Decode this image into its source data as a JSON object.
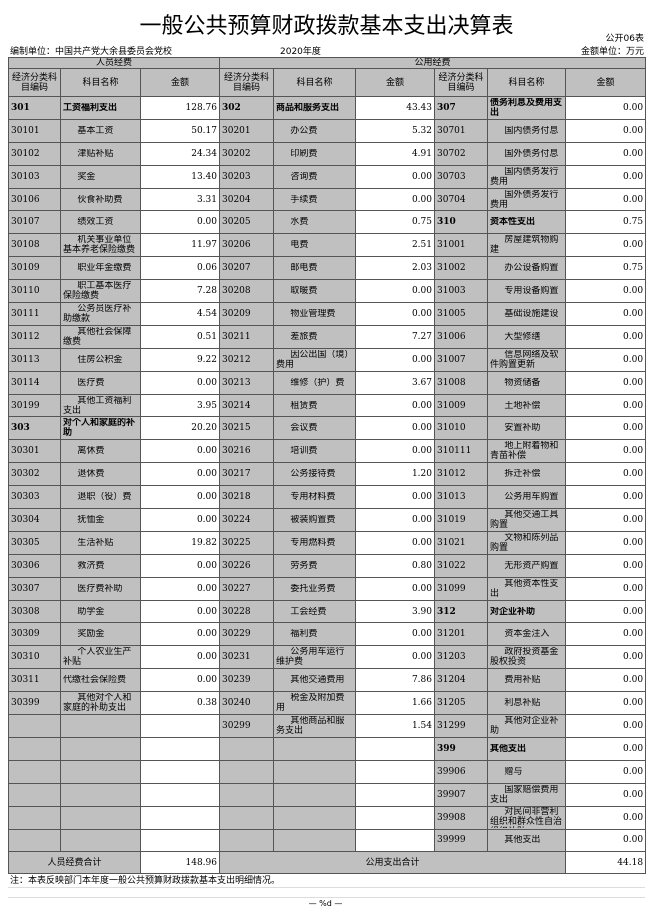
{
  "title": "一般公共预算财政拨款基本支出决算表",
  "table_no": "公开06表",
  "unit": "编制单位：中国共产党大余县委员会党校",
  "year": "2020年度",
  "money_unit": "金额单位：万元",
  "groups": {
    "personnel": "人员经费",
    "public": "公用经费"
  },
  "headers": {
    "code": "经济分类科目编码",
    "name": "科目名称",
    "amount": "金额"
  },
  "personnel": [
    [
      "301",
      "工资福利支出",
      "128.76",
      1
    ],
    [
      "30101",
      "基本工资",
      "50.17",
      0
    ],
    [
      "30102",
      "津贴补贴",
      "24.34",
      0
    ],
    [
      "30103",
      "奖金",
      "13.40",
      0
    ],
    [
      "30106",
      "伙食补助费",
      "3.31",
      0
    ],
    [
      "30107",
      "绩效工资",
      "0.00",
      0
    ],
    [
      "30108",
      "机关事业单位基本养老保险缴费",
      "11.97",
      0
    ],
    [
      "30109",
      "职业年金缴费",
      "0.06",
      0
    ],
    [
      "30110",
      "职工基本医疗保险缴费",
      "7.28",
      0
    ],
    [
      "30111",
      "公务员医疗补助缴款",
      "4.54",
      0
    ],
    [
      "30112",
      "其他社会保障缴费",
      "0.51",
      0
    ],
    [
      "30113",
      "住房公积金",
      "9.22",
      0
    ],
    [
      "30114",
      "医疗费",
      "0.00",
      0
    ],
    [
      "30199",
      "其他工资福利支出",
      "3.95",
      0
    ],
    [
      "303",
      "对个人和家庭的补助",
      "20.20",
      1
    ],
    [
      "30301",
      "离休费",
      "0.00",
      0
    ],
    [
      "30302",
      "退休费",
      "0.00",
      0
    ],
    [
      "30303",
      "退职（役）费",
      "0.00",
      0
    ],
    [
      "30304",
      "抚恤金",
      "0.00",
      0
    ],
    [
      "30305",
      "生活补贴",
      "19.82",
      0
    ],
    [
      "30306",
      "救济费",
      "0.00",
      0
    ],
    [
      "30307",
      "医疗费补助",
      "0.00",
      0
    ],
    [
      "30308",
      "助学金",
      "0.00",
      0
    ],
    [
      "30309",
      "奖励金",
      "0.00",
      0
    ],
    [
      "30310",
      "个人农业生产补贴",
      "0.00",
      0
    ],
    [
      "30311",
      "代缴社会保险费",
      "0.00",
      2
    ],
    [
      "30399",
      "其他对个人和家庭的补助支出",
      "0.38",
      0
    ]
  ],
  "public_a": [
    [
      "302",
      "商品和服务支出",
      "43.43",
      1
    ],
    [
      "30201",
      "办公费",
      "5.32",
      0
    ],
    [
      "30202",
      "印刷费",
      "4.91",
      0
    ],
    [
      "30203",
      "咨询费",
      "0.00",
      0
    ],
    [
      "30204",
      "手续费",
      "0.00",
      0
    ],
    [
      "30205",
      "水费",
      "0.75",
      0
    ],
    [
      "30206",
      "电费",
      "2.51",
      0
    ],
    [
      "30207",
      "邮电费",
      "2.03",
      0
    ],
    [
      "30208",
      "取暖费",
      "0.00",
      0
    ],
    [
      "30209",
      "物业管理费",
      "0.00",
      0
    ],
    [
      "30211",
      "差旅费",
      "7.27",
      0
    ],
    [
      "30212",
      "因公出国（境）费用",
      "0.00",
      0
    ],
    [
      "30213",
      "维修（护）费",
      "3.67",
      0
    ],
    [
      "30214",
      "租赁费",
      "0.00",
      0
    ],
    [
      "30215",
      "会议费",
      "0.00",
      0
    ],
    [
      "30216",
      "培训费",
      "0.00",
      0
    ],
    [
      "30217",
      "公务接待费",
      "1.20",
      0
    ],
    [
      "30218",
      "专用材料费",
      "0.00",
      0
    ],
    [
      "30224",
      "被装购置费",
      "0.00",
      0
    ],
    [
      "30225",
      "专用燃料费",
      "0.00",
      0
    ],
    [
      "30226",
      "劳务费",
      "0.80",
      0
    ],
    [
      "30227",
      "委托业务费",
      "0.00",
      0
    ],
    [
      "30228",
      "工会经费",
      "3.90",
      0
    ],
    [
      "30229",
      "福利费",
      "0.00",
      0
    ],
    [
      "30231",
      "公务用车运行维护费",
      "0.00",
      0
    ],
    [
      "30239",
      "其他交通费用",
      "7.86",
      0
    ],
    [
      "30240",
      "税金及附加费用",
      "1.66",
      0
    ],
    [
      "30299",
      "其他商品和服务支出",
      "1.54",
      0
    ]
  ],
  "public_b": [
    [
      "307",
      "债务利息及费用支出",
      "0.00",
      1
    ],
    [
      "30701",
      "国内债务付息",
      "0.00",
      0
    ],
    [
      "30702",
      "国外债务付息",
      "0.00",
      0
    ],
    [
      "30703",
      "国内债务发行费用",
      "0.00",
      0
    ],
    [
      "30704",
      "国外债务发行费用",
      "0.00",
      0
    ],
    [
      "310",
      "资本性支出",
      "0.75",
      1
    ],
    [
      "31001",
      "房屋建筑物购建",
      "0.00",
      0
    ],
    [
      "31002",
      "办公设备购置",
      "0.75",
      0
    ],
    [
      "31003",
      "专用设备购置",
      "0.00",
      0
    ],
    [
      "31005",
      "基础设施建设",
      "0.00",
      0
    ],
    [
      "31006",
      "大型修缮",
      "0.00",
      0
    ],
    [
      "31007",
      "信息网络及软件购置更新",
      "0.00",
      0
    ],
    [
      "31008",
      "物资储备",
      "0.00",
      0
    ],
    [
      "31009",
      "土地补偿",
      "0.00",
      0
    ],
    [
      "31010",
      "安置补助",
      "0.00",
      0
    ],
    [
      "310111",
      "地上附着物和青苗补偿",
      "0.00",
      0
    ],
    [
      "31012",
      "拆迁补偿",
      "0.00",
      0
    ],
    [
      "31013",
      "公务用车购置",
      "0.00",
      0
    ],
    [
      "31019",
      "其他交通工具购置",
      "0.00",
      0
    ],
    [
      "31021",
      "文物和陈列品购置",
      "0.00",
      0
    ],
    [
      "31022",
      "无形资产购置",
      "0.00",
      0
    ],
    [
      "31099",
      "其他资本性支出",
      "0.00",
      0
    ],
    [
      "312",
      "对企业补助",
      "0.00",
      1
    ],
    [
      "31201",
      "资本金注入",
      "0.00",
      0
    ],
    [
      "31203",
      "政府投资基金股权投资",
      "0.00",
      0
    ],
    [
      "31204",
      "费用补贴",
      "0.00",
      0
    ],
    [
      "31205",
      "利息补贴",
      "0.00",
      0
    ],
    [
      "31299",
      "其他对企业补助",
      "0.00",
      0
    ],
    [
      "399",
      "其他支出",
      "0.00",
      1
    ],
    [
      "39906",
      "赠与",
      "0.00",
      0
    ],
    [
      "39907",
      "国家赔偿费用支出",
      "0.00",
      0
    ],
    [
      "39908",
      "对民间非营利组织和群众性自治组织补贴",
      "0.00",
      0
    ],
    [
      "39999",
      "其他支出",
      "0.00",
      0
    ]
  ],
  "totals": {
    "personnel_label": "人员经费合计",
    "personnel_value": "148.96",
    "public_label": "公用支出合计",
    "public_value": "44.18"
  },
  "note": "注：本表反映部门本年度一般公共预算财政拨款基本支出明细情况。",
  "page_footer": "— %d —"
}
